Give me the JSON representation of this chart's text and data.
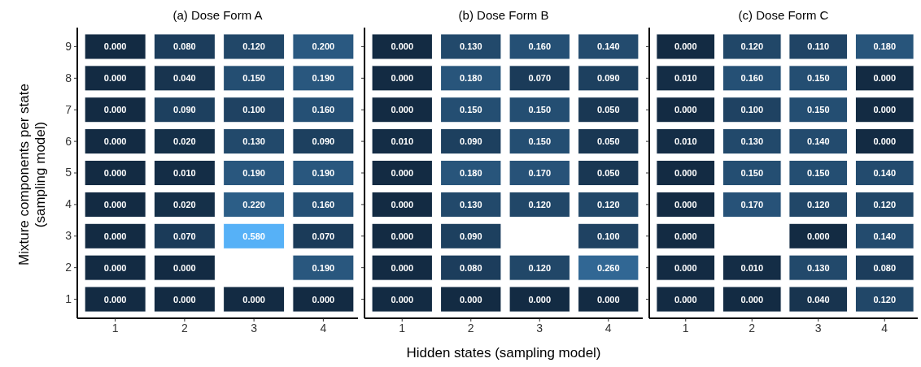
{
  "chart_data": [
    {
      "type": "heatmap",
      "title": "(a) Dose Form A",
      "ylabel": "Mixture components per state\n(sampling model)",
      "categories": [
        "1",
        "2",
        "3",
        "4"
      ],
      "y_categories": [
        "9",
        "8",
        "7",
        "6",
        "5",
        "4",
        "3",
        "2",
        "1"
      ],
      "cells": [
        [
          0,
          0.08,
          0.12,
          0.2
        ],
        [
          0,
          0.04,
          0.15,
          0.19
        ],
        [
          0,
          0.09,
          0.1,
          0.16
        ],
        [
          0,
          0.02,
          0.13,
          0.09
        ],
        [
          0,
          0.01,
          0.19,
          0.19
        ],
        [
          0,
          0.02,
          0.22,
          0.16
        ],
        [
          0,
          0.07,
          0.58,
          0.07
        ],
        [
          0,
          0,
          null,
          0.19
        ],
        [
          0,
          0,
          0,
          0
        ]
      ],
      "cell_labels": [
        [
          "0.000",
          "0.080",
          "0.120",
          "0.200"
        ],
        [
          "0.000",
          "0.040",
          "0.150",
          "0.190"
        ],
        [
          "0.000",
          "0.090",
          "0.100",
          "0.160"
        ],
        [
          "0.000",
          "0.020",
          "0.130",
          "0.090"
        ],
        [
          "0.000",
          "0.010",
          "0.190",
          "0.190"
        ],
        [
          "0.000",
          "0.020",
          "0.220",
          "0.160"
        ],
        [
          "0.000",
          "0.070",
          "0.580",
          "0.070"
        ],
        [
          "0.000",
          "0.000",
          null,
          "0.190"
        ],
        [
          "0.000",
          "0.000",
          "0.000",
          "0.000"
        ]
      ]
    },
    {
      "type": "heatmap",
      "title": "(b) Dose Form B",
      "xlabel": "Hidden states (sampling model)",
      "tick_labels": "x",
      "categories": [
        "1",
        "2",
        "3",
        "4"
      ],
      "y_categories": [
        "9",
        "8",
        "7",
        "6",
        "5",
        "4",
        "3",
        "2",
        "1"
      ],
      "cells": [
        [
          0,
          0.13,
          0.16,
          0.14
        ],
        [
          0,
          0.18,
          0.07,
          0.09
        ],
        [
          0,
          0.15,
          0.15,
          0.05
        ],
        [
          0.01,
          0.09,
          0.15,
          0.05
        ],
        [
          0,
          0.18,
          0.17,
          0.05
        ],
        [
          0,
          0.13,
          0.12,
          0.12
        ],
        [
          0,
          0.09,
          null,
          0.1
        ],
        [
          0,
          0.08,
          0.12,
          0.26
        ],
        [
          0,
          0,
          0,
          0
        ]
      ],
      "cell_labels": [
        [
          "0.000",
          "0.130",
          "0.160",
          "0.140"
        ],
        [
          "0.000",
          "0.180",
          "0.070",
          "0.090"
        ],
        [
          "0.000",
          "0.150",
          "0.150",
          "0.050"
        ],
        [
          "0.010",
          "0.090",
          "0.150",
          "0.050"
        ],
        [
          "0.000",
          "0.180",
          "0.170",
          "0.050"
        ],
        [
          "0.000",
          "0.130",
          "0.120",
          "0.120"
        ],
        [
          "0.000",
          "0.090",
          null,
          "0.100"
        ],
        [
          "0.000",
          "0.080",
          "0.120",
          "0.260"
        ],
        [
          "0.000",
          "0.000",
          "0.000",
          "0.000"
        ]
      ]
    },
    {
      "type": "heatmap",
      "title": "(c) Dose Form C",
      "tick_labels": "x",
      "categories": [
        "1",
        "2",
        "3",
        "4"
      ],
      "y_categories": [
        "9",
        "8",
        "7",
        "6",
        "5",
        "4",
        "3",
        "2",
        "1"
      ],
      "cells": [
        [
          0,
          0.12,
          0.11,
          0.18
        ],
        [
          0.01,
          0.16,
          0.15,
          0
        ],
        [
          0,
          0.1,
          0.15,
          0
        ],
        [
          0.01,
          0.13,
          0.14,
          0
        ],
        [
          0,
          0.15,
          0.15,
          0.14
        ],
        [
          0,
          0.17,
          0.12,
          0.12
        ],
        [
          0,
          null,
          0,
          0.14
        ],
        [
          0,
          0.01,
          0.13,
          0.08
        ],
        [
          0,
          0,
          0.04,
          0.12
        ]
      ],
      "cell_labels": [
        [
          "0.000",
          "0.120",
          "0.110",
          "0.180"
        ],
        [
          "0.010",
          "0.160",
          "0.150",
          "0.000"
        ],
        [
          "0.000",
          "0.100",
          "0.150",
          "0.000"
        ],
        [
          "0.010",
          "0.130",
          "0.140",
          "0.000"
        ],
        [
          "0.000",
          "0.150",
          "0.150",
          "0.140"
        ],
        [
          "0.000",
          "0.170",
          "0.120",
          "0.120"
        ],
        [
          "0.000",
          null,
          "0.000",
          "0.140"
        ],
        [
          "0.000",
          "0.010",
          "0.130",
          "0.080"
        ],
        [
          "0.000",
          "0.000",
          "0.040",
          "0.120"
        ]
      ]
    }
  ]
}
